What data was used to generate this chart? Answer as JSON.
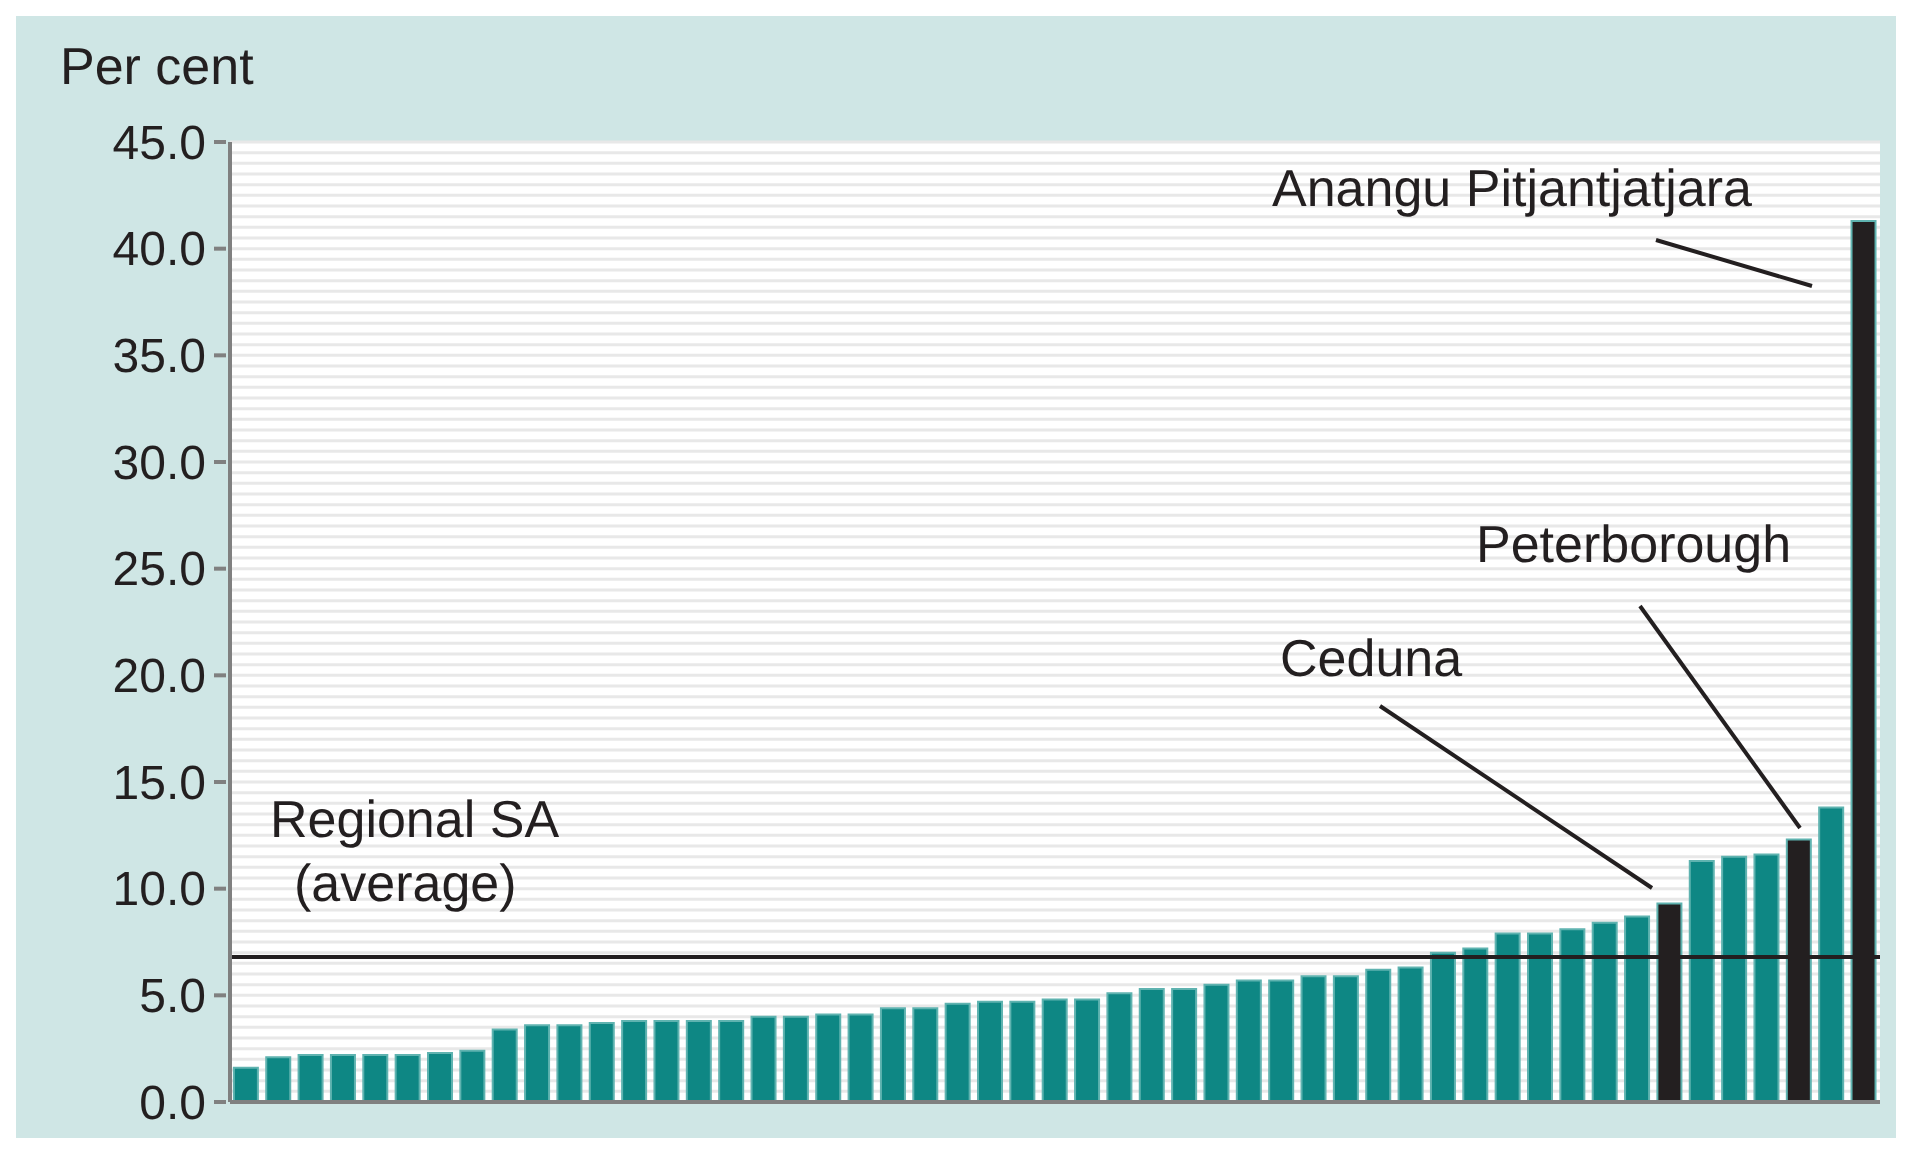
{
  "chart_data": {
    "type": "bar",
    "ylabel": "Per cent",
    "categories": [
      null,
      null,
      null,
      null,
      null,
      null,
      null,
      null,
      null,
      null,
      null,
      null,
      null,
      null,
      null,
      null,
      null,
      null,
      null,
      null,
      null,
      null,
      null,
      null,
      null,
      null,
      null,
      null,
      null,
      null,
      null,
      null,
      null,
      null,
      null,
      null,
      null,
      null,
      null,
      null,
      null,
      null,
      null,
      null,
      null,
      null,
      null,
      null,
      null,
      null,
      null
    ],
    "values": [
      1.6,
      2.1,
      2.2,
      2.2,
      2.2,
      2.2,
      2.3,
      2.4,
      3.4,
      3.6,
      3.6,
      3.7,
      3.8,
      3.8,
      3.8,
      3.8,
      4.0,
      4.0,
      4.1,
      4.1,
      4.4,
      4.4,
      4.6,
      4.7,
      4.7,
      4.8,
      4.8,
      5.1,
      5.3,
      5.3,
      5.5,
      5.7,
      5.7,
      5.9,
      5.9,
      6.2,
      6.3,
      7.0,
      7.2,
      7.9,
      7.9,
      8.1,
      8.4,
      8.7,
      9.3,
      11.3,
      11.5,
      11.6,
      12.3,
      13.8,
      41.3
    ],
    "colors": [
      "#0e8784",
      "#0e8784",
      "#0e8784",
      "#0e8784",
      "#0e8784",
      "#0e8784",
      "#0e8784",
      "#0e8784",
      "#0e8784",
      "#0e8784",
      "#0e8784",
      "#0e8784",
      "#0e8784",
      "#0e8784",
      "#0e8784",
      "#0e8784",
      "#0e8784",
      "#0e8784",
      "#0e8784",
      "#0e8784",
      "#0e8784",
      "#0e8784",
      "#0e8784",
      "#0e8784",
      "#0e8784",
      "#0e8784",
      "#0e8784",
      "#0e8784",
      "#0e8784",
      "#0e8784",
      "#0e8784",
      "#0e8784",
      "#0e8784",
      "#0e8784",
      "#0e8784",
      "#0e8784",
      "#0e8784",
      "#0e8784",
      "#0e8784",
      "#0e8784",
      "#0e8784",
      "#0e8784",
      "#0e8784",
      "#0e8784",
      "#231f20",
      "#0e8784",
      "#0e8784",
      "#0e8784",
      "#231f20",
      "#0e8784",
      "#231f20"
    ],
    "ylim": [
      0,
      45
    ],
    "yticks": [
      {
        "value": 0,
        "label": "0.0"
      },
      {
        "value": 0.5,
        "label": null
      },
      {
        "value": 1,
        "label": null
      },
      {
        "value": 1.5,
        "label": null
      },
      {
        "value": 2,
        "label": null
      },
      {
        "value": 2.5,
        "label": null
      },
      {
        "value": 3,
        "label": null
      },
      {
        "value": 3.5,
        "label": null
      },
      {
        "value": 4,
        "label": null
      },
      {
        "value": 4.5,
        "label": null
      },
      {
        "value": 5,
        "label": "5.0"
      },
      {
        "value": 5.5,
        "label": null
      },
      {
        "value": 6,
        "label": null
      },
      {
        "value": 6.5,
        "label": null
      },
      {
        "value": 7,
        "label": null
      },
      {
        "value": 7.5,
        "label": null
      },
      {
        "value": 8,
        "label": null
      },
      {
        "value": 8.5,
        "label": null
      },
      {
        "value": 9,
        "label": null
      },
      {
        "value": 9.5,
        "label": null
      },
      {
        "value": 10,
        "label": "10.0"
      },
      {
        "value": 10.5,
        "label": null
      },
      {
        "value": 11,
        "label": null
      },
      {
        "value": 11.5,
        "label": null
      },
      {
        "value": 12,
        "label": null
      },
      {
        "value": 12.5,
        "label": null
      },
      {
        "value": 13,
        "label": null
      },
      {
        "value": 13.5,
        "label": null
      },
      {
        "value": 14,
        "label": null
      },
      {
        "value": 14.5,
        "label": null
      },
      {
        "value": 15,
        "label": "15.0"
      },
      {
        "value": 15.5,
        "label": null
      },
      {
        "value": 16,
        "label": null
      },
      {
        "value": 16.5,
        "label": null
      },
      {
        "value": 17,
        "label": null
      },
      {
        "value": 17.5,
        "label": null
      },
      {
        "value": 18,
        "label": null
      },
      {
        "value": 18.5,
        "label": null
      },
      {
        "value": 19,
        "label": null
      },
      {
        "value": 19.5,
        "label": null
      },
      {
        "value": 20,
        "label": "20.0"
      },
      {
        "value": 20.5,
        "label": null
      },
      {
        "value": 21,
        "label": null
      },
      {
        "value": 21.5,
        "label": null
      },
      {
        "value": 22,
        "label": null
      },
      {
        "value": 22.5,
        "label": null
      },
      {
        "value": 23,
        "label": null
      },
      {
        "value": 23.5,
        "label": null
      },
      {
        "value": 24,
        "label": null
      },
      {
        "value": 24.5,
        "label": null
      },
      {
        "value": 25,
        "label": "25.0"
      },
      {
        "value": 25.5,
        "label": null
      },
      {
        "value": 26,
        "label": null
      },
      {
        "value": 26.5,
        "label": null
      },
      {
        "value": 27,
        "label": null
      },
      {
        "value": 27.5,
        "label": null
      },
      {
        "value": 28,
        "label": null
      },
      {
        "value": 28.5,
        "label": null
      },
      {
        "value": 29,
        "label": null
      },
      {
        "value": 29.5,
        "label": null
      },
      {
        "value": 30,
        "label": "30.0"
      },
      {
        "value": 30.5,
        "label": null
      },
      {
        "value": 31,
        "label": null
      },
      {
        "value": 31.5,
        "label": null
      },
      {
        "value": 32,
        "label": null
      },
      {
        "value": 32.5,
        "label": null
      },
      {
        "value": 33,
        "label": null
      },
      {
        "value": 33.5,
        "label": null
      },
      {
        "value": 34,
        "label": null
      },
      {
        "value": 34.5,
        "label": null
      },
      {
        "value": 35,
        "label": "35.0"
      },
      {
        "value": 35.5,
        "label": null
      },
      {
        "value": 36,
        "label": null
      },
      {
        "value": 36.5,
        "label": null
      },
      {
        "value": 37,
        "label": null
      },
      {
        "value": 37.5,
        "label": null
      },
      {
        "value": 38,
        "label": null
      },
      {
        "value": 38.5,
        "label": null
      },
      {
        "value": 39,
        "label": null
      },
      {
        "value": 39.5,
        "label": null
      },
      {
        "value": 40,
        "label": "40.0"
      },
      {
        "value": 40.5,
        "label": null
      },
      {
        "value": 41,
        "label": null
      },
      {
        "value": 41.5,
        "label": null
      },
      {
        "value": 42,
        "label": null
      },
      {
        "value": 42.5,
        "label": null
      },
      {
        "value": 43,
        "label": null
      },
      {
        "value": 43.5,
        "label": null
      },
      {
        "value": 44,
        "label": null
      },
      {
        "value": 44.5,
        "label": null
      },
      {
        "value": 45,
        "label": "45.0"
      }
    ],
    "grid": "y",
    "ref_lines": [
      {
        "axis": "y",
        "value": 6.8,
        "label": "Regional SA (average)",
        "color": "#231f20"
      }
    ],
    "annotations": [
      "Ceduna",
      "Peterborough",
      "Anangu Pitjantjatjara"
    ]
  }
}
